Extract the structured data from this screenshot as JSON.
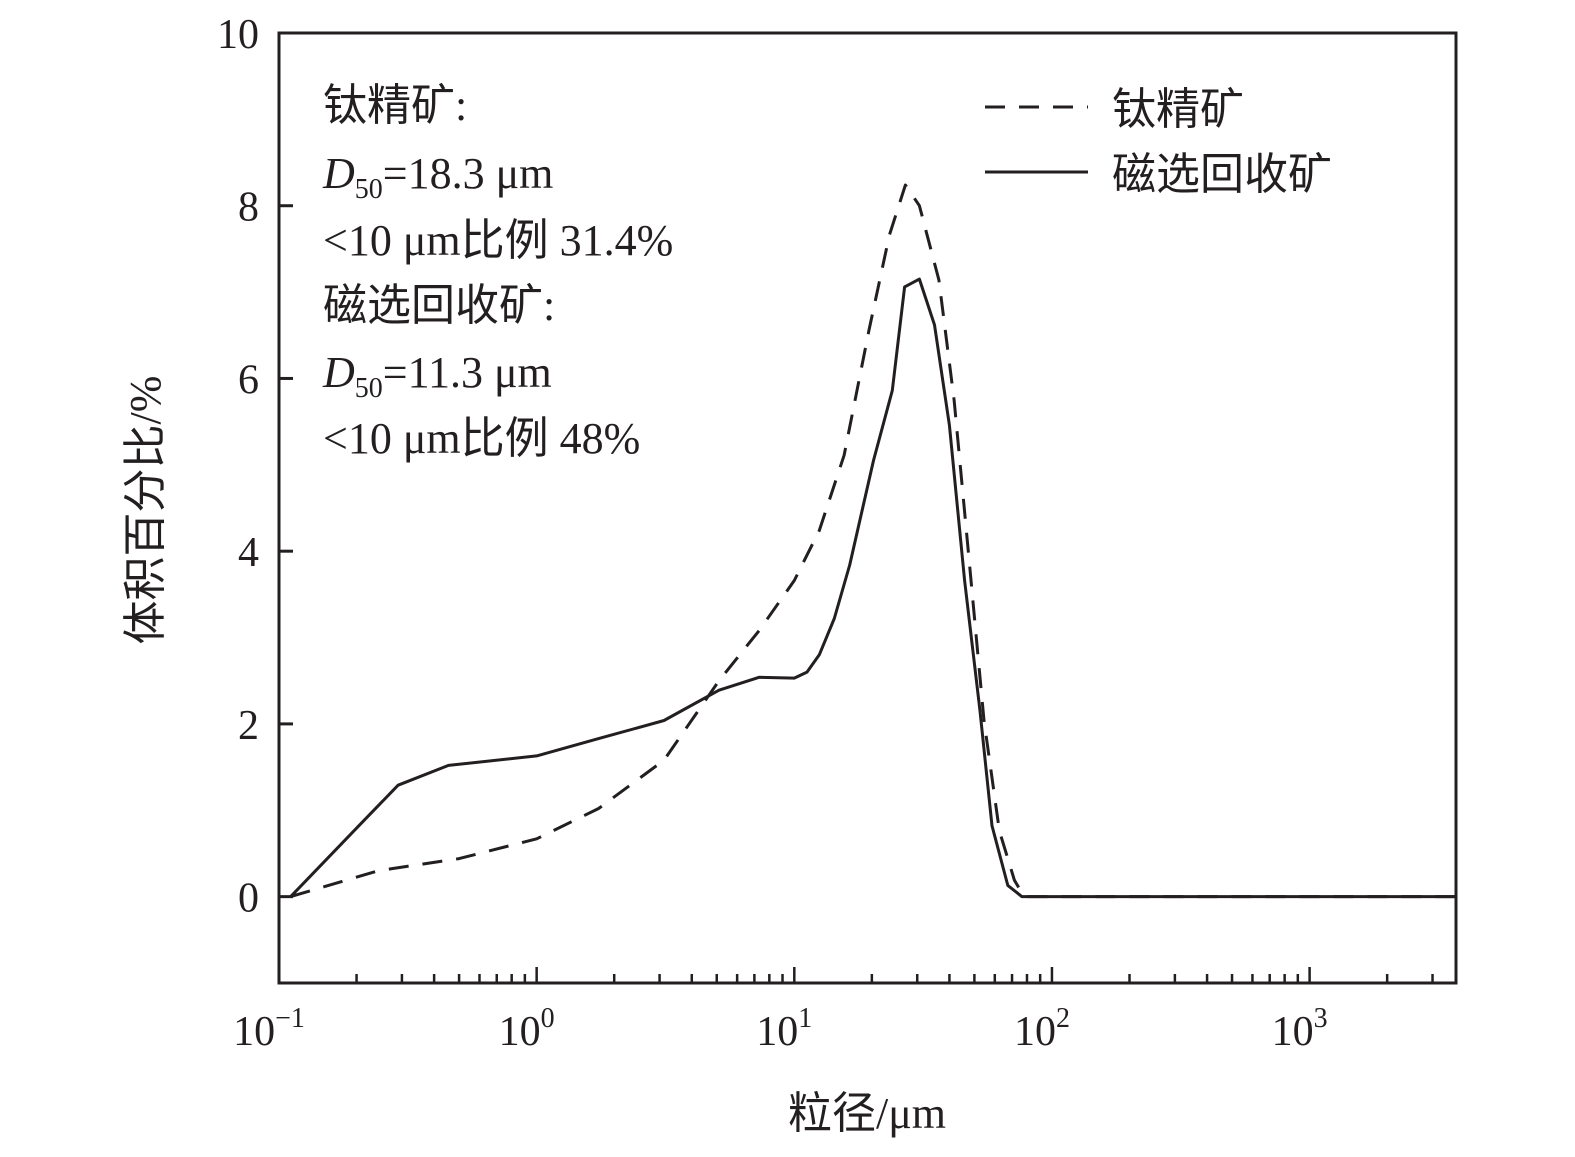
{
  "chart_data": {
    "type": "line",
    "xscale": "log",
    "xlabel": "粒径/μm",
    "ylabel": "体积百分比/%",
    "xlim": [
      0.1,
      3700
    ],
    "ylim": [
      -1,
      10
    ],
    "yticks": [
      0,
      2,
      4,
      6,
      8,
      10
    ],
    "ytick_labels": [
      "0",
      "2",
      "4",
      "6",
      "8",
      "10"
    ],
    "xticks": [
      {
        "value": 0.1,
        "base": "10",
        "exp": "−1"
      },
      {
        "value": 1,
        "base": "10",
        "exp": "0"
      },
      {
        "value": 10,
        "base": "10",
        "exp": "1"
      },
      {
        "value": 100,
        "base": "10",
        "exp": "2"
      },
      {
        "value": 1000,
        "base": "10",
        "exp": "3"
      }
    ],
    "grid": false,
    "legend_position": "top-right",
    "series": [
      {
        "name": "钛精矿",
        "style": "dashed",
        "x": [
          0.111,
          0.243,
          0.5,
          1.0,
          1.74,
          3.12,
          5.1,
          7.3,
          10,
          12.5,
          15.6,
          19.5,
          23.4,
          27,
          30.6,
          36.4,
          41.7,
          47.7,
          54.5,
          62.5,
          71.5,
          78,
          3700
        ],
        "y": [
          0,
          0.3,
          0.44,
          0.67,
          1.02,
          1.58,
          2.5,
          3.08,
          3.66,
          4.24,
          5.11,
          6.56,
          7.66,
          8.24,
          8.0,
          7.14,
          5.75,
          3.9,
          2.04,
          0.76,
          0.19,
          0,
          0
        ]
      },
      {
        "name": "磁选回收矿",
        "style": "solid",
        "x": [
          0.111,
          0.204,
          0.29,
          0.455,
          1.0,
          1.74,
          3.12,
          5.1,
          7.3,
          10,
          11.2,
          12.5,
          14.3,
          16.4,
          20.3,
          24,
          26.8,
          30.6,
          35,
          40,
          45.8,
          52.5,
          58.5,
          67.4,
          76.4,
          3700
        ],
        "y": [
          0,
          0.82,
          1.29,
          1.52,
          1.63,
          1.83,
          2.04,
          2.39,
          2.54,
          2.53,
          2.6,
          2.8,
          3.22,
          3.84,
          5.05,
          5.86,
          7.06,
          7.15,
          6.62,
          5.46,
          3.66,
          2.16,
          0.82,
          0.13,
          0,
          0
        ]
      }
    ],
    "annotations": {
      "a_title": "钛精矿:",
      "a_d": "D",
      "a_sub": "50",
      "a_d50": "=18.3 μm",
      "a_ratio": "<10 μm比例 31.4%",
      "b_title": "磁选回收矿:",
      "b_d": "D",
      "b_sub": "50",
      "b_d50": "=11.3 μm",
      "b_ratio": "<10 μm比例 48%"
    }
  }
}
